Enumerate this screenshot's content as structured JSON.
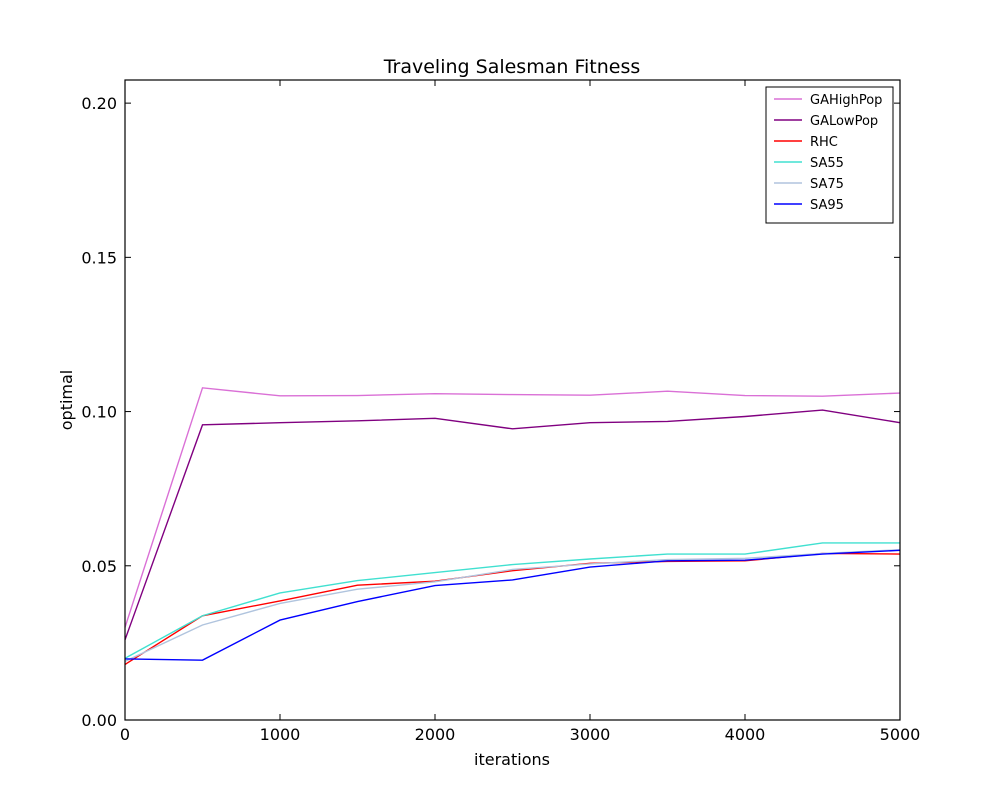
{
  "chart_data": {
    "type": "line",
    "title": "Traveling Salesman Fitness",
    "xlabel": "iterations",
    "ylabel": "optimal",
    "xlim": [
      0,
      5000
    ],
    "ylim": [
      0,
      0.2075
    ],
    "xticks": [
      0,
      1000,
      2000,
      3000,
      4000,
      5000
    ],
    "xtick_labels": [
      "0",
      "1000",
      "2000",
      "3000",
      "4000",
      "5000"
    ],
    "yticks": [
      0,
      0.05,
      0.1,
      0.15,
      0.2
    ],
    "ytick_labels": [
      "0.00",
      "0.05",
      "0.10",
      "0.15",
      "0.20"
    ],
    "grid": false,
    "legend_position": "top-right",
    "x": [
      0,
      500,
      1000,
      1500,
      2000,
      2500,
      3000,
      3500,
      4000,
      4500,
      5000
    ],
    "series": [
      {
        "name": "GAHighPop",
        "color": "#da70d6",
        "values": [
          0.03,
          0.1077,
          0.1051,
          0.1052,
          0.1058,
          0.1055,
          0.1053,
          0.1066,
          0.1052,
          0.105,
          0.106
        ]
      },
      {
        "name": "GALowPop",
        "color": "#800080",
        "values": [
          0.026,
          0.0957,
          0.0964,
          0.097,
          0.0978,
          0.0944,
          0.0964,
          0.0968,
          0.0984,
          0.1005,
          0.0964
        ]
      },
      {
        "name": "RHC",
        "color": "#ff0000",
        "values": [
          0.018,
          0.0338,
          0.0386,
          0.0437,
          0.045,
          0.0484,
          0.0508,
          0.0514,
          0.0516,
          0.054,
          0.0538
        ]
      },
      {
        "name": "SA55",
        "color": "#40e0d0",
        "values": [
          0.02,
          0.0338,
          0.0412,
          0.0452,
          0.0478,
          0.0504,
          0.0522,
          0.0538,
          0.0538,
          0.0574,
          0.0574
        ]
      },
      {
        "name": "SA75",
        "color": "#b0c4de",
        "values": [
          0.019,
          0.0308,
          0.0378,
          0.0424,
          0.0448,
          0.0488,
          0.0506,
          0.052,
          0.0524,
          0.054,
          0.0552
        ]
      },
      {
        "name": "SA95",
        "color": "#0000ff",
        "values": [
          0.0198,
          0.0194,
          0.0324,
          0.0384,
          0.0436,
          0.0454,
          0.0496,
          0.0516,
          0.0518,
          0.0538,
          0.055
        ]
      }
    ]
  }
}
